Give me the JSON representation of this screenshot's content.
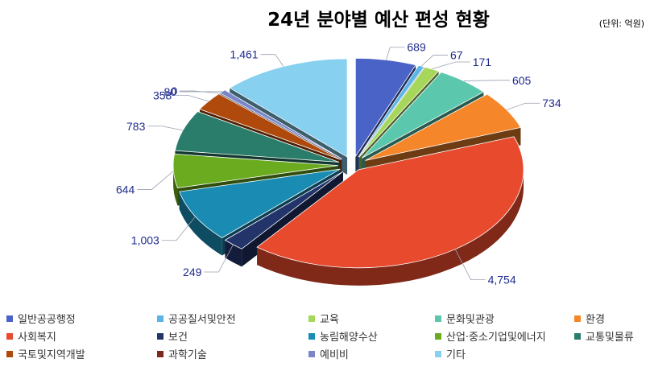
{
  "chart_data": {
    "type": "pie",
    "title": "24년 분야별 예산 편성 현황",
    "unit_note": "(단위: 억원)",
    "categories": [
      "일반공공행정",
      "공공질서및안전",
      "교육",
      "문화및관광",
      "환경",
      "사회복지",
      "보건",
      "농림해양수산",
      "산업·중소기업및에너지",
      "교통및물류",
      "국토및지역개발",
      "과학기술",
      "예비비",
      "기타"
    ],
    "values": [
      689,
      67,
      171,
      605,
      734,
      4754,
      249,
      1003,
      644,
      783,
      358,
      0,
      80,
      1461
    ],
    "value_labels": [
      "689",
      "67",
      "171",
      "605",
      "734",
      "4,754",
      "249",
      "1,003",
      "644",
      "783",
      "358",
      "0",
      "80",
      "1,461"
    ],
    "colors": [
      "#4a63c6",
      "#5ab4e5",
      "#a6d75b",
      "#5bc8ae",
      "#f5862a",
      "#e84a2e",
      "#23346b",
      "#1a8bb3",
      "#6bab1f",
      "#2a7d6a",
      "#b04a0c",
      "#7a2a1a",
      "#7a86c8",
      "#87d0f0"
    ],
    "legend_position": "bottom"
  }
}
